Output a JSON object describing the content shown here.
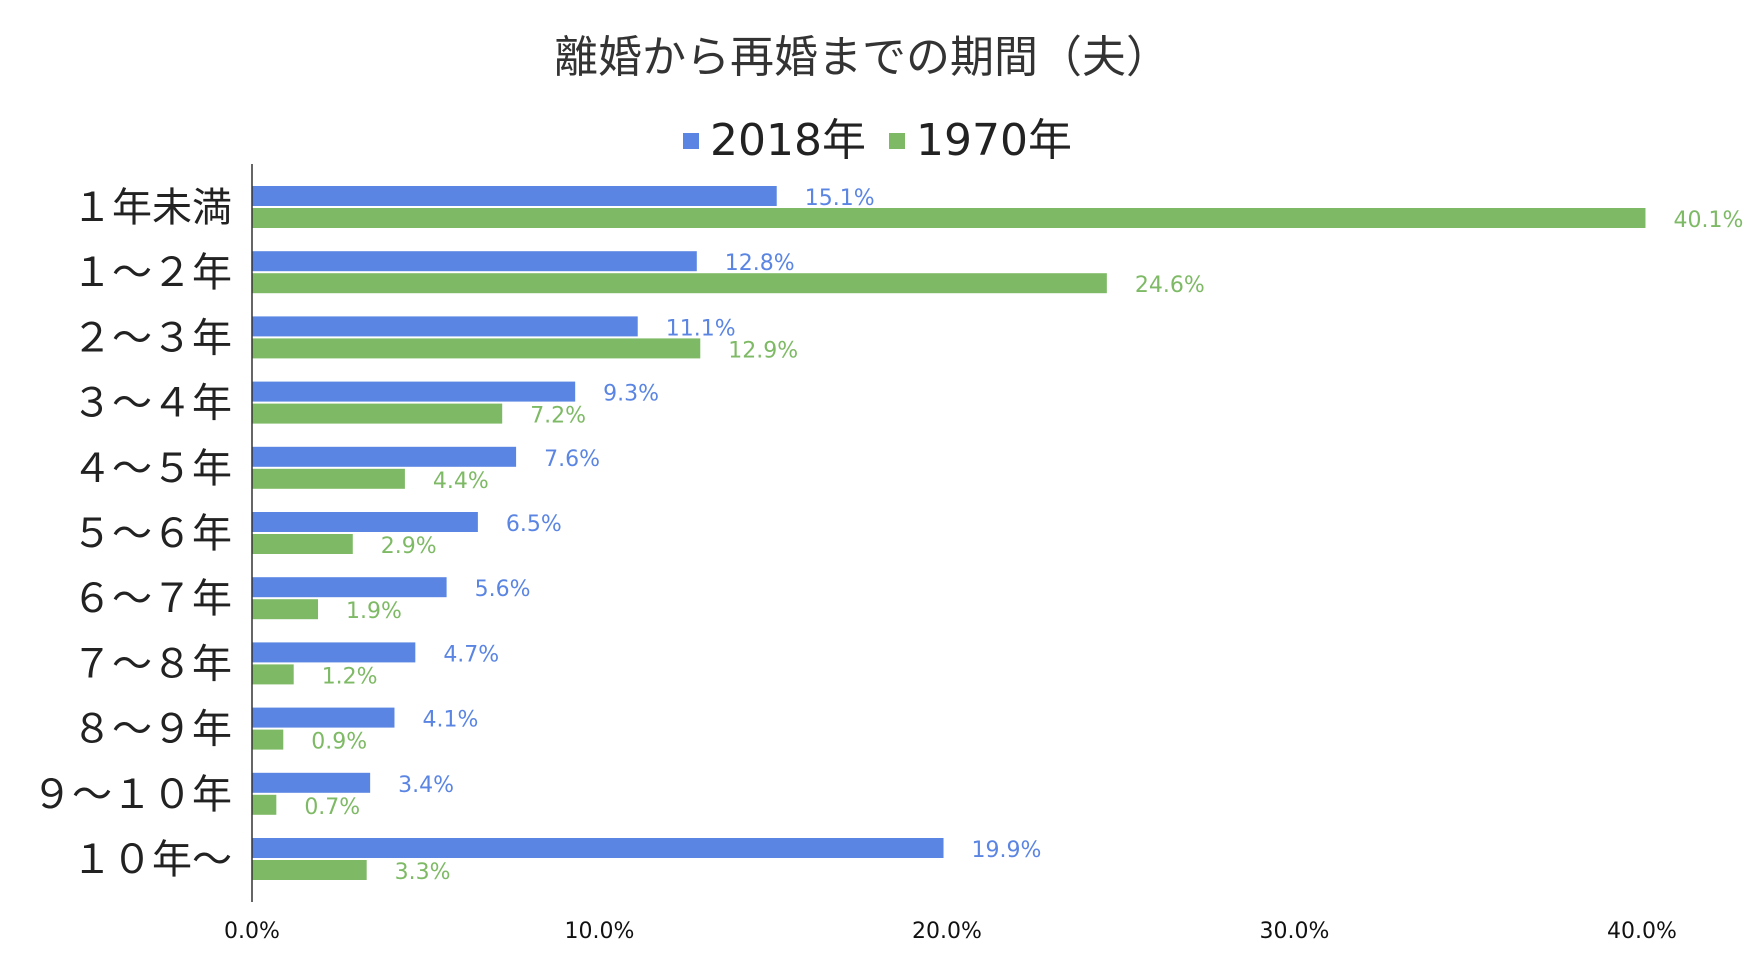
{
  "chart_data": {
    "type": "bar",
    "orientation": "horizontal",
    "title": "離婚から再婚までの期間（夫）",
    "categories": [
      "１年未満",
      "１～２年",
      "２～３年",
      "３～４年",
      "４～５年",
      "５～６年",
      "６～７年",
      "７～８年",
      "８～９年",
      "９～１０年",
      "１０年～"
    ],
    "series": [
      {
        "name": "2018年",
        "color": "#5b85e2",
        "values": [
          15.1,
          12.8,
          11.1,
          9.3,
          7.6,
          6.5,
          5.6,
          4.7,
          4.1,
          3.4,
          19.9
        ]
      },
      {
        "name": "1970年",
        "color": "#7eba65",
        "values": [
          40.1,
          24.6,
          12.9,
          7.2,
          4.4,
          2.9,
          1.9,
          1.2,
          0.9,
          0.7,
          3.3
        ]
      }
    ],
    "x_ticks": [
      "0.0%",
      "10.0%",
      "20.0%",
      "30.0%",
      "40.0%"
    ],
    "xlim": [
      0,
      40
    ],
    "value_suffix": "%",
    "legend_position": "top",
    "grid": false,
    "xlabel": "",
    "ylabel": ""
  }
}
